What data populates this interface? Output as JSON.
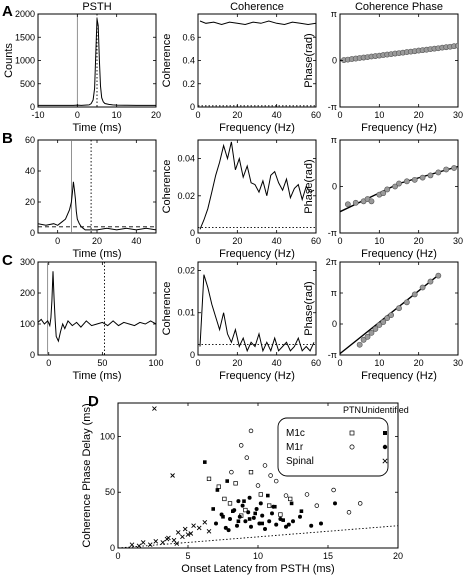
{
  "panel_letters": [
    "A",
    "B",
    "C",
    "D"
  ],
  "column_titles": [
    "PSTH",
    "Coherence",
    "Coherence Phase"
  ],
  "chart_data": [
    {
      "id": "A1",
      "type": "line",
      "title": "PSTH",
      "xlabel": "Time (ms)",
      "ylabel": "Counts",
      "xlim": [
        -10,
        20
      ],
      "ylim": [
        0,
        2000
      ],
      "xticks": [
        -10,
        0,
        10,
        20
      ],
      "yticks": [
        0,
        500,
        1000,
        1500,
        2000
      ],
      "x": [
        -10,
        -1,
        0,
        1,
        2,
        3,
        3.5,
        4,
        4.4,
        4.7,
        5,
        5.3,
        5.6,
        5.9,
        6.2,
        6.6,
        7,
        8,
        9,
        10,
        12,
        15,
        20
      ],
      "y": [
        35,
        35,
        40,
        35,
        40,
        45,
        70,
        150,
        400,
        1150,
        1900,
        1750,
        1000,
        450,
        200,
        110,
        75,
        55,
        45,
        40,
        38,
        35,
        35
      ],
      "vlines_solid": [
        0
      ],
      "vlines_dotted": [
        5
      ]
    },
    {
      "id": "A2",
      "type": "line",
      "title": "Coherence",
      "xlabel": "Frequency (Hz)",
      "ylabel": "Coherence",
      "xlim": [
        0,
        60
      ],
      "ylim": [
        0,
        0.8
      ],
      "xticks": [
        0,
        20,
        40,
        60
      ],
      "yticks": [
        0,
        0.2,
        0.4,
        0.6
      ],
      "x": [
        1,
        4,
        8,
        12,
        16,
        20,
        24,
        28,
        32,
        36,
        40,
        44,
        48,
        52,
        56,
        60
      ],
      "y": [
        0.74,
        0.72,
        0.73,
        0.71,
        0.73,
        0.72,
        0.71,
        0.73,
        0.72,
        0.74,
        0.72,
        0.71,
        0.73,
        0.72,
        0.71,
        0.72
      ],
      "significance_level": 0.01
    },
    {
      "id": "A3",
      "type": "scatter",
      "title": "Coherence Phase",
      "xlabel": "Frequency (Hz)",
      "ylabel": "Phase(rad)",
      "xlim": [
        0,
        30
      ],
      "ylim": [
        -3.14159,
        3.14159
      ],
      "xticks": [
        0,
        10,
        20,
        30
      ],
      "yticks": [
        -3.14159,
        0,
        3.14159
      ],
      "ytick_labels": [
        "-π",
        "0",
        "π"
      ],
      "x": [
        1,
        2,
        3,
        4,
        5,
        6,
        7,
        8,
        9,
        10,
        11,
        12,
        13,
        14,
        15,
        16,
        17,
        18,
        19,
        20,
        21,
        22,
        23,
        24,
        25,
        26,
        27,
        28,
        29,
        30
      ],
      "y": [
        0.03,
        0.06,
        0.1,
        0.13,
        0.17,
        0.2,
        0.23,
        0.27,
        0.3,
        0.33,
        0.37,
        0.4,
        0.43,
        0.47,
        0.5,
        0.53,
        0.57,
        0.6,
        0.63,
        0.67,
        0.7,
        0.73,
        0.77,
        0.8,
        0.83,
        0.87,
        0.9,
        0.93,
        0.97,
        1.0
      ],
      "fit_line": [
        [
          0,
          0.0
        ],
        [
          30,
          1.0
        ]
      ]
    },
    {
      "id": "B1",
      "type": "line",
      "xlabel": "Time (ms)",
      "ylabel": "",
      "xlim": [
        -10,
        50
      ],
      "ylim": [
        0,
        60
      ],
      "xticks": [
        0,
        20,
        40
      ],
      "yticks": [
        0,
        20,
        40,
        60
      ],
      "x": [
        -10,
        -6,
        -2,
        0,
        2,
        4,
        5,
        6,
        7,
        7.5,
        8,
        8.5,
        9,
        9.5,
        10,
        11,
        12,
        13,
        14,
        16,
        20,
        25,
        30,
        35,
        40,
        45,
        50
      ],
      "y": [
        6,
        5,
        6,
        5,
        7,
        9,
        12,
        15,
        20,
        26,
        33,
        28,
        22,
        14,
        9,
        6,
        4,
        3,
        2,
        2,
        2,
        3,
        2,
        3,
        2,
        3,
        2
      ],
      "vlines_solid": [
        7
      ],
      "vlines_dotted": [
        17
      ],
      "hline_dashed": 4
    },
    {
      "id": "B2",
      "type": "line",
      "xlabel": "Frequency (Hz)",
      "ylabel": "Coherence",
      "xlim": [
        0,
        60
      ],
      "ylim": [
        0,
        0.05
      ],
      "xticks": [
        0,
        20,
        40,
        60
      ],
      "yticks": [
        0,
        0.02,
        0.04
      ],
      "x": [
        1,
        3,
        5,
        7,
        9,
        11,
        13,
        15,
        17,
        19,
        21,
        23,
        25,
        27,
        29,
        31,
        33,
        35,
        37,
        39,
        41,
        43,
        45,
        47,
        49,
        51,
        53,
        55,
        57,
        59
      ],
      "y": [
        0.002,
        0.007,
        0.013,
        0.022,
        0.031,
        0.038,
        0.047,
        0.04,
        0.049,
        0.034,
        0.04,
        0.03,
        0.036,
        0.027,
        0.026,
        0.022,
        0.028,
        0.02,
        0.031,
        0.033,
        0.027,
        0.023,
        0.029,
        0.019,
        0.024,
        0.026,
        0.018,
        0.025,
        0.022,
        0.023
      ],
      "significance_level": 0.003
    },
    {
      "id": "B3",
      "type": "scatter",
      "xlabel": "Frequency (Hz)",
      "ylabel": "Phase(rad)",
      "xlim": [
        0,
        30
      ],
      "ylim": [
        -3.14159,
        3.14159
      ],
      "xticks": [
        0,
        10,
        20,
        30
      ],
      "yticks": [
        -3.14159,
        0,
        3.14159
      ],
      "ytick_labels": [
        "-π",
        "0",
        "π"
      ],
      "x": [
        2,
        4,
        6,
        7,
        8,
        10,
        11,
        12,
        14,
        15,
        17,
        19,
        21,
        23,
        25,
        27,
        29
      ],
      "y": [
        -1.2,
        -1.1,
        -1.0,
        -0.85,
        -1.0,
        -0.55,
        -0.45,
        -0.2,
        0.0,
        0.2,
        0.35,
        0.45,
        0.6,
        0.75,
        0.95,
        1.15,
        1.25
      ],
      "fit_line": [
        [
          0,
          -1.7
        ],
        [
          15,
          0.2
        ],
        [
          30,
          1.35
        ]
      ]
    },
    {
      "id": "C1",
      "type": "line",
      "xlabel": "Time (ms)",
      "ylabel": "",
      "xlim": [
        -10,
        100
      ],
      "ylim": [
        0,
        300
      ],
      "xticks": [
        0,
        50,
        100
      ],
      "yticks": [
        0,
        100,
        200,
        300
      ],
      "x": [
        -10,
        -7,
        -4,
        -1,
        1,
        2,
        3,
        4,
        5,
        6,
        7,
        9,
        11,
        13,
        15,
        18,
        22,
        26,
        30,
        35,
        40,
        45,
        50,
        55,
        60,
        65,
        70,
        75,
        80,
        85,
        90,
        95,
        100
      ],
      "y": [
        105,
        115,
        100,
        110,
        95,
        120,
        175,
        270,
        180,
        110,
        60,
        45,
        75,
        100,
        85,
        110,
        95,
        105,
        90,
        110,
        95,
        100,
        105,
        95,
        110,
        95,
        105,
        100,
        95,
        105,
        100,
        110,
        100
      ],
      "vlines_solid": [
        -1
      ],
      "vlines_dotted": [
        52
      ]
    },
    {
      "id": "C2",
      "type": "line",
      "xlabel": "Frequency (Hz)",
      "ylabel": "Coherence",
      "xlim": [
        0,
        60
      ],
      "ylim": [
        0,
        0.022
      ],
      "xticks": [
        0,
        20,
        40,
        60
      ],
      "yticks": [
        0,
        0.01,
        0.02
      ],
      "x": [
        1,
        3,
        5,
        7,
        9,
        11,
        13,
        15,
        17,
        19,
        21,
        23,
        25,
        27,
        29,
        31,
        33,
        35,
        37,
        39,
        41,
        43,
        45,
        47,
        49,
        51,
        53,
        55,
        57,
        59
      ],
      "y": [
        0.002,
        0.019,
        0.016,
        0.012,
        0.009,
        0.006,
        0.01,
        0.005,
        0.003,
        0.006,
        0.002,
        0.004,
        0.001,
        0.003,
        0.002,
        0.005,
        0.001,
        0.003,
        0.001,
        0.004,
        0.001,
        0.002,
        0.003,
        0.001,
        0.002,
        0.004,
        0.001,
        0.002,
        0.001,
        0.003
      ],
      "significance_level": 0.0025
    },
    {
      "id": "C3",
      "type": "scatter",
      "xlabel": "Frequency (Hz)",
      "ylabel": "Phase(rad)",
      "xlim": [
        0,
        30
      ],
      "ylim": [
        -3.14159,
        6.28318
      ],
      "xticks": [
        0,
        10,
        20,
        30
      ],
      "yticks": [
        -3.14159,
        0,
        3.14159,
        6.28318
      ],
      "ytick_labels": [
        "-π",
        "0",
        "π",
        "2π"
      ],
      "x": [
        5,
        6,
        7,
        8,
        9,
        10,
        11,
        12,
        13,
        15,
        17,
        19,
        21,
        23,
        25
      ],
      "y": [
        -2.1,
        -1.6,
        -1.3,
        -0.9,
        -0.5,
        -0.1,
        0.2,
        0.6,
        0.9,
        1.6,
        2.2,
        3.0,
        3.7,
        4.3,
        4.9
      ],
      "fit_line": [
        [
          0,
          -3.0
        ],
        [
          25,
          4.95
        ]
      ]
    },
    {
      "id": "D",
      "type": "scatter",
      "xlabel": "Onset Latency from PSTH (ms)",
      "ylabel": "Coherence Phase Delay (ms)",
      "xlim": [
        0,
        20
      ],
      "ylim": [
        0,
        130
      ],
      "xticks": [
        0,
        5,
        10,
        15,
        20
      ],
      "yticks": [
        0,
        50,
        100
      ],
      "legend": {
        "col_headers": [
          "PTN",
          "Unidentified"
        ],
        "rows": [
          "M1c",
          "M1r",
          "Spinal"
        ]
      },
      "series": [
        {
          "name": "M1c PTN",
          "marker": "square-open",
          "x": [
            6.5,
            7.2,
            7.6,
            8.0,
            8.4,
            9.1,
            9.5,
            10.2,
            10.8,
            11.6,
            12.3,
            8.8
          ],
          "y": [
            62,
            55,
            44,
            40,
            58,
            34,
            68,
            48,
            38,
            30,
            44,
            29
          ]
        },
        {
          "name": "M1c Unidentified",
          "marker": "square-filled",
          "x": [
            6.2,
            6.8,
            7.1,
            7.5,
            7.8,
            8.2,
            8.6,
            9.0,
            9.4,
            9.8,
            10.3,
            10.7,
            11.2,
            11.8,
            12.4,
            13.1
          ],
          "y": [
            77,
            35,
            52,
            28,
            60,
            33,
            24,
            42,
            26,
            31,
            22,
            47,
            37,
            25,
            40,
            33
          ]
        },
        {
          "name": "M1r PTN",
          "marker": "circle-open",
          "x": [
            8.1,
            8.8,
            9.5,
            10.0,
            10.5,
            11.3,
            12.0,
            13.5,
            14.2,
            15.4,
            16.5,
            17.3,
            9.2,
            10.9
          ],
          "y": [
            68,
            92,
            105,
            56,
            74,
            60,
            47,
            48,
            38,
            52,
            32,
            40,
            81,
            65
          ]
        },
        {
          "name": "M1r Unidentified",
          "marker": "circle-filled",
          "x": [
            7.0,
            7.4,
            7.7,
            8.0,
            8.3,
            8.5,
            8.7,
            8.9,
            9.1,
            9.3,
            9.5,
            9.7,
            9.9,
            10.1,
            10.3,
            10.5,
            10.8,
            11.0,
            11.3,
            11.6,
            12.0,
            12.5,
            13.0,
            13.8,
            14.5,
            15.5,
            8.6,
            9.4,
            10.2,
            11.1,
            12.2,
            7.9
          ],
          "y": [
            22,
            30,
            18,
            26,
            34,
            20,
            28,
            38,
            24,
            32,
            19,
            27,
            35,
            22,
            29,
            17,
            24,
            31,
            21,
            26,
            19,
            24,
            28,
            20,
            22,
            40,
            42,
            45,
            40,
            37,
            21,
            16
          ]
        },
        {
          "name": "Spinal Unidentified",
          "marker": "x",
          "x": [
            1.0,
            1.8,
            2.3,
            2.7,
            3.2,
            3.6,
            4.0,
            4.3,
            4.6,
            4.8,
            5.0,
            5.4,
            5.8,
            6.2,
            3.9,
            2.6,
            1.5,
            4.2,
            5.2,
            6.5,
            3.5
          ],
          "y": [
            3,
            5,
            3,
            6,
            5,
            9,
            7,
            14,
            10,
            17,
            12,
            20,
            18,
            23,
            65,
            125,
            2,
            4,
            13,
            15,
            8
          ]
        }
      ],
      "reference_line": [
        [
          0,
          0
        ],
        [
          20,
          20
        ]
      ]
    }
  ]
}
